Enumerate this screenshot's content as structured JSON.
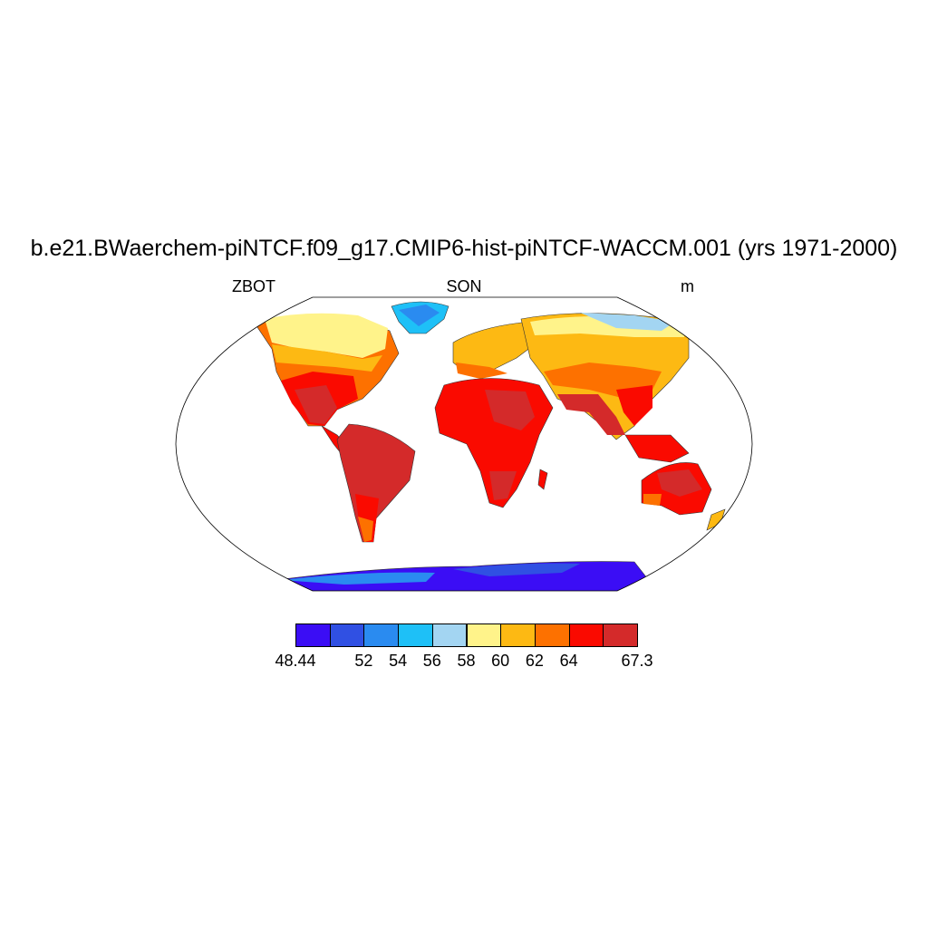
{
  "title": "b.e21.BWaerchem-piNTCF.f09_g17.CMIP6-hist-piNTCF-WACCM.001 (yrs 1971-2000)",
  "left_label": "ZBOT",
  "center_label": "SON",
  "right_label": "m",
  "colorbar": {
    "colors": [
      "#3b0df5",
      "#3050e3",
      "#2a8bf0",
      "#1ec0f7",
      "#a3d5f2",
      "#fff38a",
      "#fdb913",
      "#fd7100",
      "#fa0a00",
      "#d42a2a"
    ],
    "labels": [
      "48.44",
      "52",
      "54",
      "56",
      "58",
      "60",
      "62",
      "64",
      "67.3"
    ],
    "label_edges": [
      0,
      2,
      3,
      4,
      5,
      6,
      7,
      8,
      10
    ]
  },
  "map": {
    "projection": "robinson",
    "continents": [
      {
        "name": "north-america",
        "color": "#fa0a00"
      },
      {
        "name": "south-america",
        "color": "#d42a2a"
      },
      {
        "name": "europe",
        "color": "#fdb913"
      },
      {
        "name": "africa",
        "color": "#fa0a00"
      },
      {
        "name": "asia",
        "color": "#fdb913"
      },
      {
        "name": "australia",
        "color": "#fa0a00"
      },
      {
        "name": "greenland",
        "color": "#1ec0f7"
      },
      {
        "name": "antarctica",
        "color": "#3b0df5"
      }
    ]
  }
}
